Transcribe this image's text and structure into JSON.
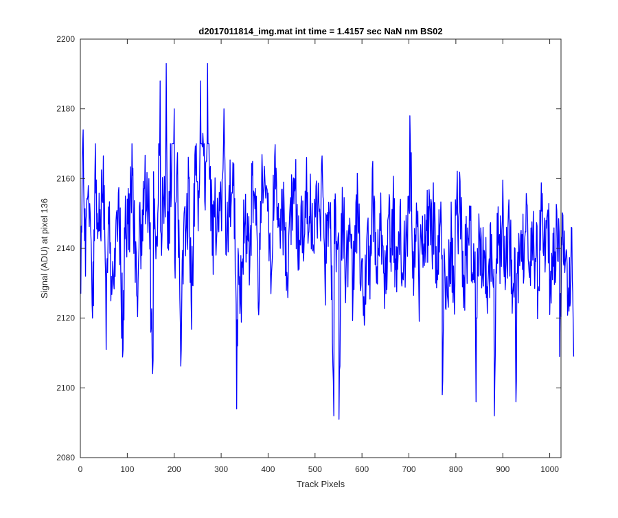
{
  "chart_data": {
    "type": "line",
    "title": "d2017011814_img.mat int time = 1.4157 sec  NaN nm BS02",
    "xlabel": "Track Pixels",
    "ylabel": "Signal (ADU) at pixel 136",
    "xlim": [
      0,
      1024
    ],
    "ylim": [
      2080,
      2200
    ],
    "xticks": [
      0,
      100,
      200,
      300,
      400,
      500,
      600,
      700,
      800,
      900,
      1000
    ],
    "yticks": [
      2080,
      2100,
      2120,
      2140,
      2160,
      2180,
      2200
    ],
    "grid": false,
    "line_color": "#0000ff",
    "series": [
      {
        "x_start": 1,
        "x_step": 5,
        "y": [
          2127,
          2174,
          2132,
          2155,
          2150,
          2120,
          2161,
          2150,
          2145,
          2156,
          2158,
          2133,
          2147,
          2132,
          2130,
          2148,
          2156,
          2135,
          2111,
          2155,
          2147,
          2153,
          2161,
          2145,
          2126,
          2152,
          2138,
          2157,
          2151,
          2160,
          2118,
          2162,
          2137,
          2153,
          2145,
          2156,
          2149,
          2140,
          2158,
          2170,
          2136,
          2164,
          2138,
          2124,
          2150,
          2147,
          2160,
          2125,
          2144,
          2161,
          2145,
          2188,
          2173,
          2151,
          2193,
          2162,
          2138,
          2149,
          2145,
          2156,
          2145,
          2180,
          2138,
          2153,
          2152,
          2158,
          2131,
          2140,
          2125,
          2137,
          2148,
          2150,
          2135,
          2161,
          2155,
          2146,
          2125,
          2157,
          2158,
          2158,
          2149,
          2127,
          2161,
          2157,
          2146,
          2140,
          2148,
          2146,
          2131,
          2150,
          2152,
          2160,
          2149,
          2134,
          2155,
          2138,
          2157,
          2144,
          2151,
          2141,
          2149,
          2153,
          2146,
          2160,
          2132,
          2148,
          2150,
          2135,
          2154,
          2142,
          2140,
          2150,
          2148,
          2133,
          2143,
          2144,
          2127,
          2139,
          2155,
          2130,
          2137,
          2121,
          2145,
          2135,
          2151,
          2155,
          2130,
          2140,
          2145,
          2133,
          2127,
          2149,
          2140,
          2152,
          2137,
          2134,
          2152,
          2133,
          2140,
          2142,
          2150,
          2148,
          2136,
          2153,
          2129,
          2144,
          2139,
          2136,
          2152,
          2141,
          2147,
          2145,
          2131,
          2146,
          2138,
          2137,
          2132,
          2134,
          2143,
          2129,
          2150,
          2149,
          2149,
          2123,
          2138,
          2143,
          2148,
          2133,
          2139,
          2140,
          2142,
          2131,
          2139,
          2129,
          2137,
          2144,
          2134,
          2137,
          2142,
          2140,
          2150,
          2131,
          2146,
          2141,
          2127,
          2140,
          2133,
          2135,
          2144,
          2141,
          2153,
          2133,
          2135,
          2142,
          2138,
          2128,
          2149,
          2139,
          2138,
          2151,
          2129,
          2131,
          2139,
          2144,
          2136,
          2141,
          2145,
          2139,
          2122,
          2146,
          2109
        ]
      }
    ],
    "annotations": [
      {
        "x": 55,
        "y": 2111
      },
      {
        "x": 155,
        "y": 2108
      },
      {
        "x": 170,
        "y": 2188
      },
      {
        "x": 183,
        "y": 2193
      },
      {
        "x": 200,
        "y": 2180
      },
      {
        "x": 215,
        "y": 2111
      },
      {
        "x": 333,
        "y": 2094
      },
      {
        "x": 540,
        "y": 2092
      },
      {
        "x": 551,
        "y": 2091
      },
      {
        "x": 702,
        "y": 2178
      },
      {
        "x": 771,
        "y": 2098
      },
      {
        "x": 843,
        "y": 2096
      },
      {
        "x": 882,
        "y": 2092
      },
      {
        "x": 928,
        "y": 2096
      },
      {
        "x": 1021,
        "y": 2109
      }
    ]
  }
}
